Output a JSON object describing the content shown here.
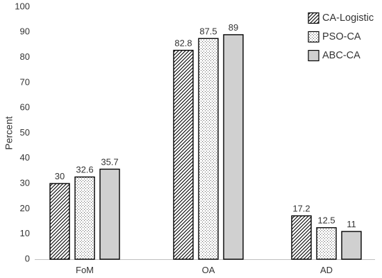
{
  "chart_data": {
    "type": "bar",
    "title": "",
    "xlabel": "",
    "ylabel": "Percent",
    "ylim": [
      0,
      100
    ],
    "yticks": [
      0,
      10,
      20,
      30,
      40,
      50,
      60,
      70,
      80,
      90,
      100
    ],
    "grid": false,
    "legend_position": "top-right",
    "categories": [
      "FoM",
      "OA",
      "AD"
    ],
    "series": [
      {
        "name": "CA-Logistic",
        "values": [
          30,
          82.8,
          17.2
        ],
        "fill": "diagonal-hatch",
        "color": "#000000"
      },
      {
        "name": "PSO-CA",
        "values": [
          32.6,
          87.5,
          12.5
        ],
        "fill": "dotted",
        "color": "#000000"
      },
      {
        "name": "ABC-CA",
        "values": [
          35.7,
          89,
          11
        ],
        "fill": "solid",
        "color": "#d0d0d0"
      }
    ],
    "data_labels": [
      [
        "30",
        "82.8",
        "17.2"
      ],
      [
        "32.6",
        "87.5",
        "12.5"
      ],
      [
        "35.7",
        "89",
        "11"
      ]
    ]
  }
}
